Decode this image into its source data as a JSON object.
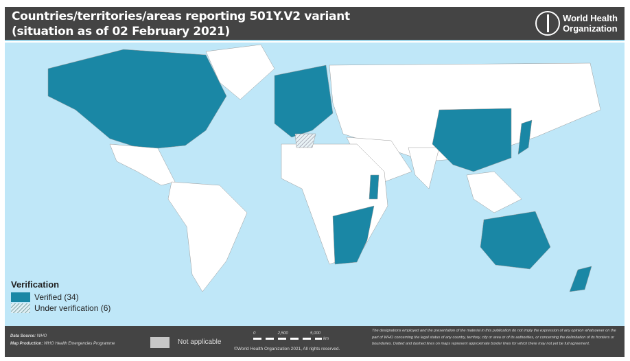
{
  "header": {
    "title_line1": "Countries/territories/areas reporting 501Y.V2 variant",
    "title_line2": "(situation as of 02 February 2021)",
    "org_name_line1": "World Health",
    "org_name_line2": "Organization"
  },
  "legend": {
    "title": "Verification",
    "items": [
      {
        "label": "Verified (34)",
        "color": "#1a87a5"
      },
      {
        "label": "Under verification (6)",
        "pattern": "hatched"
      }
    ]
  },
  "colors": {
    "ocean": "#bfe7f8",
    "land": "#ffffff",
    "verified": "#1a87a5",
    "not_applicable": "#c8c8c8",
    "bar": "#444444"
  },
  "footer": {
    "data_source_label": "Data Source:",
    "data_source": "WHO",
    "map_production_label": "Map Production:",
    "map_production": "WHO Health Emergencies Programme",
    "not_applicable": "Not applicable",
    "scale_ticks": [
      "0",
      "2,500",
      "5,000"
    ],
    "scale_unit": "km",
    "copyright": "©World Health Organization 2021, All rights reserved.",
    "disclaimer": "The designations employed and the presentation of the material in this publication do not imply the expression of any opinion whatsoever on the part of WHO concerning the legal status of any country, territory, city or area or of its authorities, or concerning the delimitation of its frontiers or boundaries. Dotted and dashed lines on maps represent approximate border lines for which there may not yet be full agreement."
  }
}
